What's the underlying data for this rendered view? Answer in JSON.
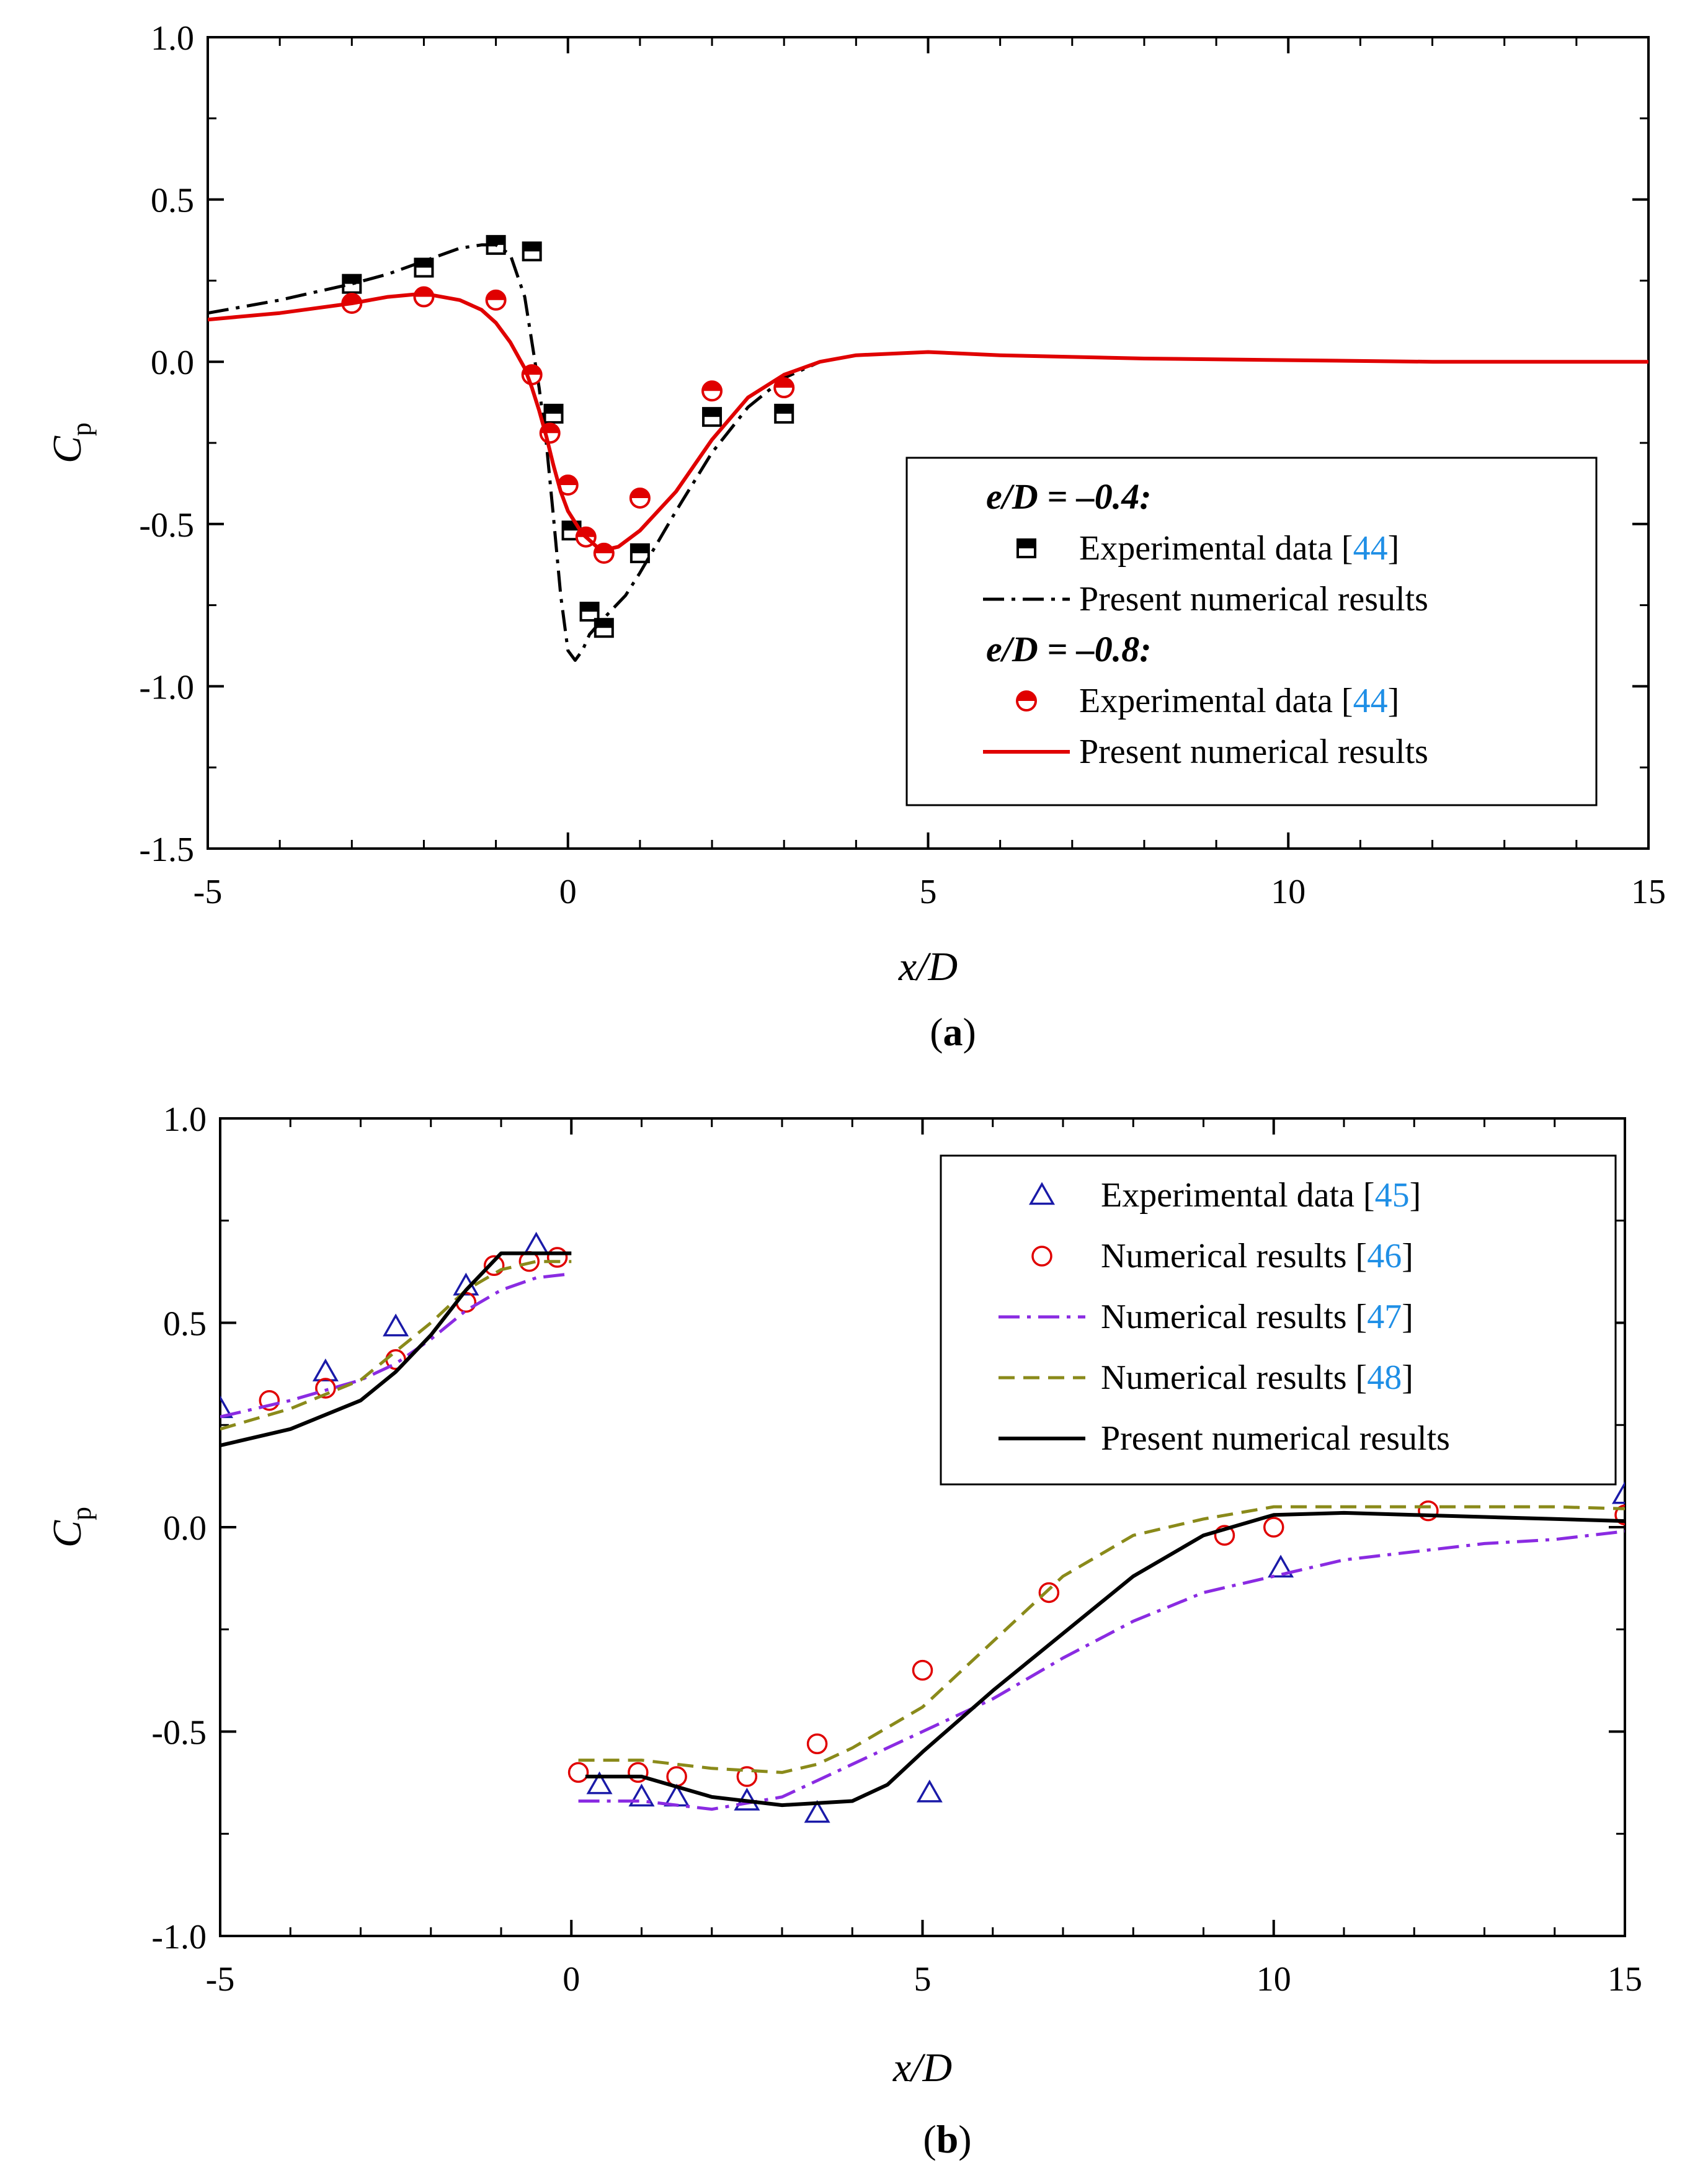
{
  "chart_data": [
    {
      "type": "line",
      "panel_label": "(a)",
      "xlabel": "x/D",
      "ylabel": "C",
      "ylabel_sub": "p",
      "xlim": [
        -5,
        15
      ],
      "ylim": [
        -1.5,
        1.0
      ],
      "xticks": [
        "-5",
        "0",
        "5",
        "10",
        "15"
      ],
      "yticks": [
        "1.0",
        "0.5",
        "0.0",
        "-0.5",
        "-1.0",
        "-1.5"
      ],
      "legend_placement": "right",
      "legend": [
        {
          "type": "heading",
          "text": "e/D = –0.4:"
        },
        {
          "type": "entry",
          "series": 0,
          "text": "Experimental data [",
          "ref": "44",
          "close": "]"
        },
        {
          "type": "entry",
          "series": 1,
          "text": "Present numerical results"
        },
        {
          "type": "heading",
          "text": "e/D = –0.8:"
        },
        {
          "type": "entry",
          "series": 2,
          "text": "Experimental data [",
          "ref": "44",
          "close": "]"
        },
        {
          "type": "entry",
          "series": 3,
          "text": "Present numerical results"
        }
      ],
      "series": [
        {
          "kind": "scatter",
          "marker": "half-square",
          "color": "#000000",
          "x": [
            -3.0,
            -2.0,
            -1.0,
            -0.5,
            -0.2,
            0.05,
            0.3,
            0.5,
            1.0,
            2.0,
            3.0
          ],
          "y": [
            0.24,
            0.29,
            0.36,
            0.34,
            -0.16,
            -0.52,
            -0.77,
            -0.82,
            -0.59,
            -0.17,
            -0.16
          ]
        },
        {
          "kind": "line",
          "dash": "dashdot",
          "color": "#000000",
          "x": [
            -5.0,
            -4.0,
            -3.0,
            -2.5,
            -2.0,
            -1.5,
            -1.2,
            -1.0,
            -0.8,
            -0.6,
            -0.4,
            -0.3,
            -0.2,
            -0.1,
            0.0,
            0.1,
            0.2,
            0.3,
            0.5,
            0.8,
            1.0,
            1.5,
            2.0,
            2.5,
            3.0,
            3.5,
            4.0,
            5.0,
            6.0,
            8.0,
            10.0,
            12.0,
            15.0
          ],
          "y": [
            0.15,
            0.19,
            0.24,
            0.27,
            0.31,
            0.35,
            0.36,
            0.36,
            0.33,
            0.2,
            -0.08,
            -0.25,
            -0.48,
            -0.72,
            -0.89,
            -0.92,
            -0.89,
            -0.84,
            -0.79,
            -0.72,
            -0.65,
            -0.46,
            -0.28,
            -0.14,
            -0.05,
            0.0,
            0.02,
            0.03,
            0.02,
            0.01,
            0.005,
            0.0,
            0.0
          ]
        },
        {
          "kind": "scatter",
          "marker": "half-circle",
          "color": "#e00000",
          "x": [
            -3.0,
            -2.0,
            -1.0,
            -0.5,
            -0.25,
            0.0,
            0.25,
            0.5,
            1.0,
            2.0,
            3.0
          ],
          "y": [
            0.18,
            0.2,
            0.19,
            -0.04,
            -0.22,
            -0.38,
            -0.54,
            -0.59,
            -0.42,
            -0.09,
            -0.08
          ]
        },
        {
          "kind": "line",
          "dash": "solid",
          "color": "#e00000",
          "x": [
            -5.0,
            -4.0,
            -3.0,
            -2.5,
            -2.0,
            -1.5,
            -1.2,
            -1.0,
            -0.8,
            -0.6,
            -0.5,
            -0.4,
            -0.3,
            -0.2,
            -0.1,
            0.0,
            0.2,
            0.4,
            0.5,
            0.7,
            1.0,
            1.5,
            2.0,
            2.5,
            3.0,
            3.5,
            4.0,
            5.0,
            6.0,
            8.0,
            10.0,
            12.0,
            15.0
          ],
          "y": [
            0.13,
            0.15,
            0.18,
            0.2,
            0.21,
            0.19,
            0.16,
            0.12,
            0.06,
            -0.02,
            -0.08,
            -0.15,
            -0.23,
            -0.32,
            -0.4,
            -0.46,
            -0.53,
            -0.57,
            -0.58,
            -0.57,
            -0.52,
            -0.4,
            -0.24,
            -0.11,
            -0.04,
            0.0,
            0.02,
            0.03,
            0.02,
            0.01,
            0.005,
            0.0,
            0.0
          ]
        }
      ]
    },
    {
      "type": "line",
      "panel_label": "(b)",
      "xlabel": "x/D",
      "ylabel": "C",
      "ylabel_sub": "p",
      "xlim": [
        -5,
        15
      ],
      "ylim": [
        -1.0,
        1.0
      ],
      "xticks": [
        "-5",
        "0",
        "5",
        "10",
        "15"
      ],
      "yticks": [
        "1.0",
        "0.5",
        "0.0",
        "-0.5",
        "-1.0"
      ],
      "legend_placement": "top-right",
      "legend": [
        {
          "type": "entry",
          "series": 0,
          "text": "Experimental data [",
          "ref": "45",
          "close": "]"
        },
        {
          "type": "entry",
          "series": 1,
          "text": "Numerical results [",
          "ref": "46",
          "close": "]"
        },
        {
          "type": "entry",
          "series": 2,
          "text": "Numerical results [",
          "ref": "47",
          "close": "]"
        },
        {
          "type": "entry",
          "series": 3,
          "text": "Numerical results [",
          "ref": "48",
          "close": "]"
        },
        {
          "type": "entry",
          "series": 4,
          "text": "Present numerical results"
        }
      ],
      "series": [
        {
          "kind": "scatter",
          "marker": "triangle",
          "color": "#1a1aa8",
          "x": [
            -5.0,
            -3.5,
            -2.5,
            -1.5,
            -0.5,
            0.4,
            1.0,
            1.5,
            2.5,
            3.5,
            5.1,
            10.1,
            15.0
          ],
          "y": [
            0.29,
            0.38,
            0.49,
            0.59,
            0.69,
            -0.63,
            -0.66,
            -0.66,
            -0.67,
            -0.7,
            -0.65,
            -0.1,
            0.08
          ]
        },
        {
          "kind": "scatter",
          "marker": "circle",
          "color": "#e00000",
          "x": [
            -4.3,
            -3.5,
            -2.5,
            -1.5,
            -1.1,
            -0.6,
            -0.2,
            0.1,
            0.95,
            1.5,
            2.5,
            3.5,
            5.0,
            6.8,
            9.3,
            10.0,
            12.2,
            15.0
          ],
          "y": [
            0.31,
            0.34,
            0.41,
            0.55,
            0.64,
            0.65,
            0.66,
            -0.6,
            -0.6,
            -0.61,
            -0.61,
            -0.53,
            -0.35,
            -0.16,
            -0.02,
            0.0,
            0.04,
            0.03
          ]
        },
        {
          "kind": "line",
          "dash": "dashdot",
          "color": "#8a2be2",
          "x": [
            -5.0,
            -4.0,
            -3.0,
            -2.5,
            -2.0,
            -1.5,
            -1.0,
            -0.5,
            0.0,
            null,
            0.1,
            1.0,
            2.0,
            3.0,
            4.0,
            5.0,
            6.0,
            7.0,
            8.0,
            9.0,
            10.0,
            11.0,
            12.0,
            13.0,
            14.0,
            15.0
          ],
          "y": [
            0.27,
            0.31,
            0.36,
            0.4,
            0.46,
            0.53,
            0.58,
            0.61,
            0.62,
            null,
            -0.67,
            -0.67,
            -0.69,
            -0.66,
            -0.58,
            -0.5,
            -0.42,
            -0.32,
            -0.23,
            -0.16,
            -0.12,
            -0.08,
            -0.06,
            -0.04,
            -0.03,
            -0.01
          ]
        },
        {
          "kind": "line",
          "dash": "dashed",
          "color": "#8a8a1a",
          "x": [
            -5.0,
            -4.0,
            -3.0,
            -2.5,
            -2.0,
            -1.5,
            -1.0,
            -0.5,
            0.0,
            null,
            0.1,
            1.0,
            2.0,
            3.0,
            3.5,
            4.0,
            5.0,
            6.0,
            7.0,
            8.0,
            9.0,
            10.0,
            11.0,
            12.0,
            13.0,
            14.0,
            15.0
          ],
          "y": [
            0.24,
            0.29,
            0.36,
            0.43,
            0.5,
            0.58,
            0.63,
            0.65,
            0.65,
            null,
            -0.57,
            -0.57,
            -0.59,
            -0.6,
            -0.58,
            -0.54,
            -0.44,
            -0.28,
            -0.12,
            -0.02,
            0.02,
            0.05,
            0.05,
            0.05,
            0.05,
            0.05,
            0.045
          ]
        },
        {
          "kind": "line",
          "dash": "solid",
          "color": "#000000",
          "x": [
            -5.0,
            -4.0,
            -3.0,
            -2.5,
            -2.0,
            -1.5,
            -1.0,
            -0.5,
            0.0,
            null,
            0.2,
            1.0,
            2.0,
            3.0,
            4.0,
            4.5,
            5.0,
            6.0,
            7.0,
            8.0,
            9.0,
            10.0,
            11.0,
            12.0,
            13.0,
            14.0,
            15.0
          ],
          "y": [
            0.2,
            0.24,
            0.31,
            0.38,
            0.47,
            0.58,
            0.67,
            0.67,
            0.67,
            null,
            -0.61,
            -0.61,
            -0.66,
            -0.68,
            -0.67,
            -0.63,
            -0.55,
            -0.4,
            -0.26,
            -0.12,
            -0.02,
            0.03,
            0.035,
            0.03,
            0.025,
            0.02,
            0.015
          ]
        }
      ]
    }
  ]
}
